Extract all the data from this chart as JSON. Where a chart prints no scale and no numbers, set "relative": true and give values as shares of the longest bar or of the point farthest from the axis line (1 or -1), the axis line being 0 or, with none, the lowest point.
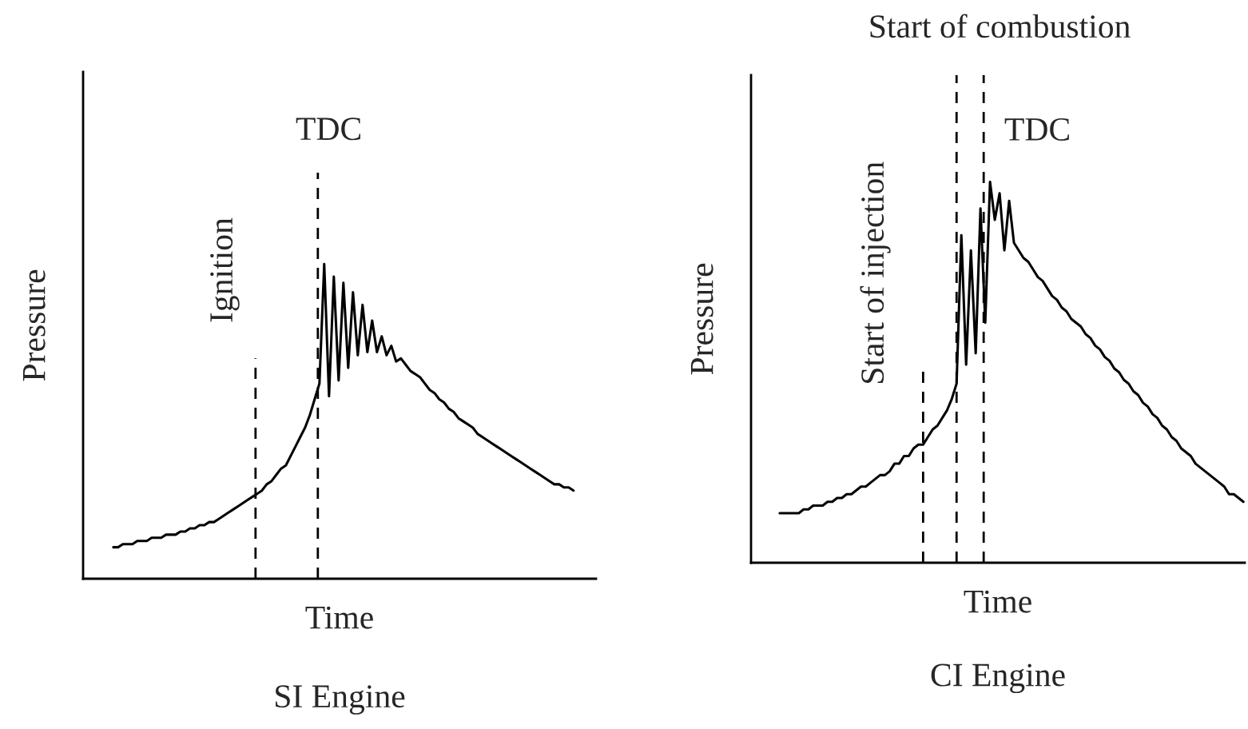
{
  "chart_data": [
    {
      "type": "line",
      "title": "SI Engine",
      "xlabel": "Time",
      "ylabel": "Pressure",
      "relative": true,
      "marker": "none",
      "line_style": "solid",
      "categories": [
        null,
        null,
        null,
        null,
        null,
        null,
        null,
        null,
        null,
        null,
        null,
        null,
        null,
        null,
        null,
        null,
        null,
        null,
        null,
        null,
        null,
        null,
        null,
        null,
        null,
        null,
        null,
        null,
        null,
        null,
        null,
        null,
        null,
        null,
        null,
        null,
        null,
        null,
        null,
        null,
        null,
        null,
        null,
        null,
        null,
        null,
        null,
        null,
        null,
        null,
        null,
        null,
        null,
        null,
        null,
        null,
        null,
        null,
        null,
        null,
        null,
        null,
        null,
        null,
        null,
        null,
        null,
        null,
        null,
        null,
        null,
        null,
        null,
        null,
        null,
        null,
        null,
        null,
        null,
        null,
        null,
        null,
        null,
        null,
        null,
        null,
        null,
        null,
        null,
        null,
        null,
        null,
        null,
        null,
        null,
        null,
        null
      ],
      "series": [
        {
          "color": "#000000",
          "values": [
            0.1,
            0.1,
            0.11,
            0.11,
            0.11,
            0.12,
            0.12,
            0.12,
            0.13,
            0.13,
            0.13,
            0.14,
            0.14,
            0.14,
            0.15,
            0.15,
            0.16,
            0.16,
            0.17,
            0.17,
            0.18,
            0.18,
            0.19,
            0.2,
            0.21,
            0.22,
            0.23,
            0.24,
            0.25,
            0.26,
            0.27,
            0.28,
            0.3,
            0.31,
            0.33,
            0.35,
            0.36,
            0.39,
            0.42,
            0.45,
            0.48,
            0.52,
            0.57,
            0.62,
            1,
            0.58,
            0.96,
            0.63,
            0.94,
            0.67,
            0.91,
            0.71,
            0.87,
            0.72,
            0.82,
            0.72,
            0.77,
            0.71,
            0.74,
            0.69,
            0.7,
            0.68,
            0.66,
            0.65,
            0.64,
            0.62,
            0.6,
            0.59,
            0.57,
            0.56,
            0.54,
            0.53,
            0.51,
            0.5,
            0.49,
            0.48,
            0.46,
            0.45,
            0.44,
            0.43,
            0.42,
            0.41,
            0.4,
            0.39,
            0.38,
            0.37,
            0.36,
            0.35,
            0.34,
            0.33,
            0.32,
            0.31,
            0.3,
            0.3,
            0.29,
            0.29,
            0.28
          ]
        }
      ],
      "annotations": [
        "Ignition",
        "TDC"
      ]
    },
    {
      "type": "line",
      "title": "CI Engine",
      "xlabel": "Time",
      "ylabel": "Pressure",
      "relative": true,
      "marker": "none",
      "line_style": "solid",
      "categories": [
        null,
        null,
        null,
        null,
        null,
        null,
        null,
        null,
        null,
        null,
        null,
        null,
        null,
        null,
        null,
        null,
        null,
        null,
        null,
        null,
        null,
        null,
        null,
        null,
        null,
        null,
        null,
        null,
        null,
        null,
        null,
        null,
        null,
        null,
        null,
        null,
        null,
        null,
        null,
        null,
        null,
        null,
        null,
        null,
        null,
        null,
        null,
        null,
        null,
        null,
        null,
        null,
        null,
        null,
        null,
        null,
        null,
        null,
        null,
        null,
        null,
        null,
        null,
        null,
        null,
        null,
        null,
        null,
        null,
        null,
        null,
        null,
        null,
        null,
        null,
        null,
        null,
        null,
        null,
        null,
        null,
        null,
        null,
        null,
        null,
        null,
        null,
        null,
        null,
        null,
        null,
        null,
        null,
        null,
        null,
        null,
        null,
        null
      ],
      "series": [
        {
          "color": "#000000",
          "values": [
            0.13,
            0.13,
            0.13,
            0.13,
            0.13,
            0.14,
            0.14,
            0.15,
            0.15,
            0.15,
            0.16,
            0.16,
            0.17,
            0.17,
            0.18,
            0.18,
            0.19,
            0.2,
            0.2,
            0.21,
            0.22,
            0.23,
            0.23,
            0.24,
            0.26,
            0.26,
            0.28,
            0.28,
            0.3,
            0.31,
            0.31,
            0.33,
            0.35,
            0.36,
            0.38,
            0.4,
            0.43,
            0.47,
            0.86,
            0.52,
            0.82,
            0.55,
            0.93,
            0.63,
            1,
            0.9,
            0.97,
            0.82,
            0.95,
            0.84,
            0.82,
            0.8,
            0.79,
            0.77,
            0.75,
            0.74,
            0.72,
            0.7,
            0.69,
            0.67,
            0.66,
            0.64,
            0.63,
            0.62,
            0.6,
            0.59,
            0.57,
            0.56,
            0.54,
            0.53,
            0.51,
            0.5,
            0.48,
            0.47,
            0.45,
            0.44,
            0.42,
            0.41,
            0.39,
            0.38,
            0.36,
            0.35,
            0.33,
            0.32,
            0.3,
            0.29,
            0.28,
            0.26,
            0.25,
            0.24,
            0.23,
            0.22,
            0.21,
            0.2,
            0.18,
            0.18,
            0.17,
            0.16
          ]
        }
      ],
      "annotations": [
        "Start of injection",
        "Start of combustion",
        "TDC"
      ]
    }
  ]
}
